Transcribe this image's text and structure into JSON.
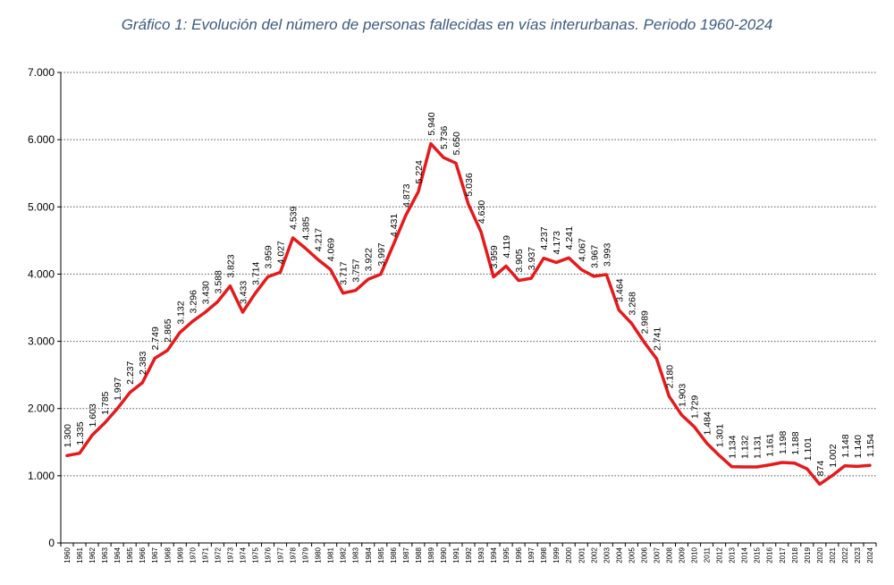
{
  "chart_data": {
    "type": "line",
    "title": "Gráfico 1: Evolución del número de personas fallecidas en vías interurbanas. Periodo 1960-2024",
    "xlabel": "",
    "ylabel": "",
    "ylim": [
      0,
      7000
    ],
    "yticks": [
      "0",
      "1.000",
      "2.000",
      "3.000",
      "4.000",
      "5.000",
      "6.000",
      "7.000"
    ],
    "grid": true,
    "line_color": "#e41a1c",
    "x": [
      "1960",
      "1961",
      "1962",
      "1963",
      "1964",
      "1965",
      "1966",
      "1967",
      "1968",
      "1969",
      "1970",
      "1971",
      "1972",
      "1973",
      "1974",
      "1975",
      "1976",
      "1977",
      "1978",
      "1979",
      "1980",
      "1981",
      "1982",
      "1983",
      "1984",
      "1985",
      "1986",
      "1987",
      "1988",
      "1989",
      "1990",
      "1991",
      "1992",
      "1993",
      "1994",
      "1995",
      "1996",
      "1997",
      "1998",
      "1999",
      "2000",
      "2001",
      "2002",
      "2003",
      "2004",
      "2005",
      "2006",
      "2007",
      "2008",
      "2009",
      "2010",
      "2011",
      "2012",
      "2013",
      "2014",
      "2015",
      "2016",
      "2017",
      "2018",
      "2019",
      "2020",
      "2021",
      "2022",
      "2023",
      "2024"
    ],
    "values": [
      1300,
      1335,
      1603,
      1785,
      1997,
      2237,
      2383,
      2749,
      2865,
      3132,
      3296,
      3430,
      3588,
      3823,
      3433,
      3714,
      3959,
      4027,
      4539,
      4385,
      4217,
      4069,
      3717,
      3757,
      3922,
      3997,
      4431,
      4873,
      5224,
      5940,
      5736,
      5650,
      5036,
      4630,
      3959,
      4119,
      3905,
      3937,
      4237,
      4173,
      4241,
      4067,
      3967,
      3993,
      3464,
      3268,
      2989,
      2741,
      2180,
      1903,
      1729,
      1484,
      1301,
      1134,
      1132,
      1131,
      1161,
      1198,
      1188,
      1101,
      874,
      1002,
      1148,
      1140,
      1154
    ],
    "labels": [
      "1.300",
      "1.335",
      "1.603",
      "1.785",
      "1.997",
      "2.237",
      "2.383",
      "2.749",
      "2.865",
      "3.132",
      "3.296",
      "3.430",
      "3.588",
      "3.823",
      "3.433",
      "3.714",
      "3.959",
      "4.027",
      "4.539",
      "4.385",
      "4.217",
      "4.069",
      "3.717",
      "3.757",
      "3.922",
      "3.997",
      "4.431",
      "4.873",
      "5.224",
      "5.940",
      "5.736",
      "5.650",
      "5.036",
      "4.630",
      "3.959",
      "4.119",
      "3.905",
      "3.937",
      "4.237",
      "4.173",
      "4.241",
      "4.067",
      "3.967",
      "3.993",
      "3.464",
      "3.268",
      "2.989",
      "2.741",
      "2.180",
      "1.903",
      "1.729",
      "1.484",
      "1.301",
      "1.134",
      "1.132",
      "1.131",
      "1.161",
      "1.198",
      "1.188",
      "1.101",
      "874",
      "1.002",
      "1.148",
      "1.140",
      "1.154"
    ]
  }
}
